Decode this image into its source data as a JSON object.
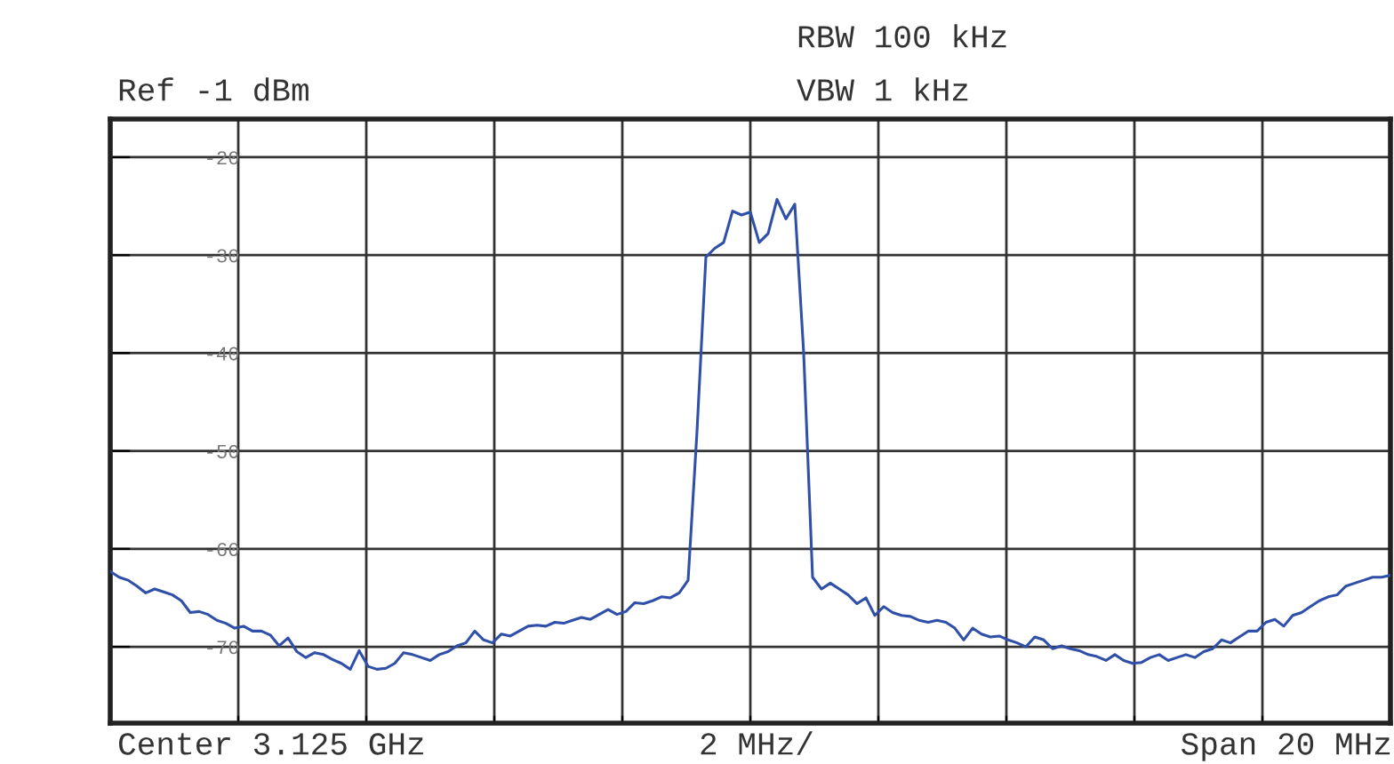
{
  "chart_data": {
    "type": "line",
    "annotations": [
      "Ref -1 dBm",
      "RBW 100 kHz",
      "VBW 1 kHz",
      "Center 3.125 GHz",
      "2 MHz/",
      "Span 20 MHz"
    ],
    "categories": [
      null,
      null,
      null,
      null,
      null,
      null,
      null,
      null,
      null,
      null,
      null,
      null,
      null,
      null,
      null,
      null,
      null,
      null,
      null,
      null,
      null,
      null,
      null,
      null,
      null,
      null,
      null,
      null,
      null,
      null,
      null,
      null,
      null,
      null,
      null,
      null,
      null,
      null,
      null,
      null,
      null,
      null,
      null,
      null,
      null,
      null,
      null,
      null,
      null,
      null,
      null,
      null,
      null,
      null,
      null,
      null,
      null,
      null,
      null,
      null,
      null,
      null,
      null,
      null,
      null,
      null,
      null,
      null,
      null,
      null,
      null,
      null,
      null,
      null,
      null,
      null,
      null,
      null,
      null,
      null,
      null,
      null,
      null,
      null,
      null,
      null,
      null,
      null,
      null,
      null,
      null,
      null,
      null,
      null,
      null,
      null,
      null,
      null,
      null,
      null,
      null,
      null,
      null,
      null,
      null,
      null,
      null,
      null,
      null,
      null,
      null,
      null,
      null,
      null,
      null,
      null,
      null,
      null,
      null,
      null,
      null,
      null,
      null,
      null,
      null,
      null,
      null,
      null,
      null,
      null,
      null,
      null,
      null,
      null,
      null,
      null,
      null,
      null,
      null,
      null,
      null,
      null,
      null,
      null,
      null
    ],
    "ylim": [
      -77.8,
      -16.1
    ],
    "yticks": [
      -20,
      -30,
      -40,
      -50,
      -60,
      -70
    ],
    "tick_labels": "y",
    "grid": true,
    "legend": false,
    "marker": "none",
    "line_style": "solid",
    "series": [
      {
        "color": "#2f4fa8",
        "values": [
          -62.3,
          -62.9,
          -63.2,
          -63.8,
          -64.5,
          -64.1,
          -64.4,
          -64.7,
          -65.3,
          -66.5,
          -66.4,
          -66.7,
          -67.3,
          -67.6,
          -68.1,
          -67.9,
          -68.4,
          -68.4,
          -68.8,
          -69.9,
          -69.1,
          -70.5,
          -71.1,
          -70.6,
          -70.8,
          -71.3,
          -71.7,
          -72.3,
          -70.4,
          -72.0,
          -72.3,
          -72.2,
          -71.7,
          -70.6,
          -70.8,
          -71.1,
          -71.4,
          -70.8,
          -70.5,
          -69.9,
          -69.6,
          -68.4,
          -69.3,
          -69.6,
          -68.7,
          -68.9,
          -68.4,
          -67.9,
          -67.8,
          -67.9,
          -67.5,
          -67.6,
          -67.3,
          -67.0,
          -67.2,
          -66.7,
          -66.2,
          -66.7,
          -66.4,
          -65.5,
          -65.6,
          -65.3,
          -64.9,
          -65.0,
          -64.5,
          -63.2,
          -48,
          -30.2,
          -29.3,
          -28.7,
          -25.5,
          -25.9,
          -25.6,
          -28.7,
          -27.8,
          -24.3,
          -26.3,
          -24.8,
          -40,
          -62.9,
          -64.1,
          -63.5,
          -64.1,
          -64.7,
          -65.6,
          -65,
          -66.8,
          -65.9,
          -66.5,
          -66.8,
          -66.9,
          -67.3,
          -67.5,
          -67.3,
          -67.5,
          -68.1,
          -69.3,
          -68.1,
          -68.7,
          -69.0,
          -68.9,
          -69.3,
          -69.6,
          -70,
          -69,
          -69.3,
          -70.2,
          -69.9,
          -70.2,
          -70.4,
          -70.8,
          -71.0,
          -71.4,
          -70.8,
          -71.4,
          -71.7,
          -71.6,
          -71.1,
          -70.8,
          -71.4,
          -71.1,
          -70.8,
          -71.1,
          -70.5,
          -70.2,
          -69.3,
          -69.6,
          -69.0,
          -68.4,
          -68.4,
          -67.5,
          -67.2,
          -67.9,
          -66.8,
          -66.5,
          -65.9,
          -65.3,
          -64.9,
          -64.7,
          -63.8,
          -63.5,
          -63.2,
          -62.9,
          -62.9,
          -62.7
        ]
      }
    ]
  }
}
